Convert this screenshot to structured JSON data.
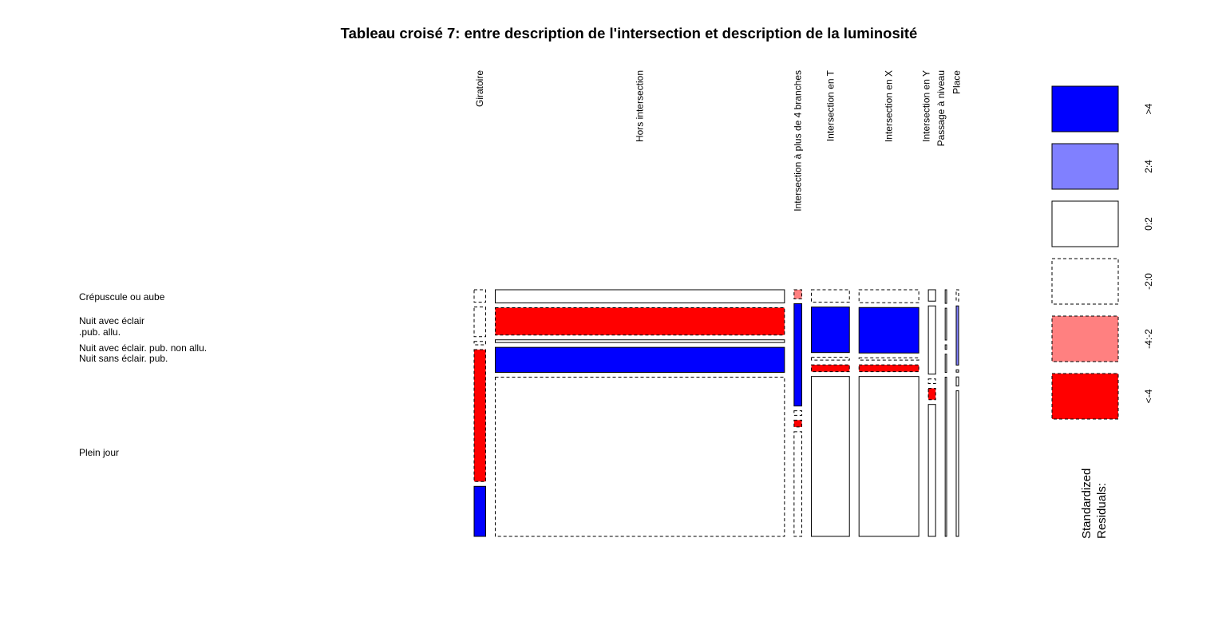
{
  "chart_data": {
    "type": "mosaic",
    "title": "Tableau croisé 7: entre description de l'intersection et description de la luminosité",
    "columns": [
      "Giratoire",
      "Hors intersection",
      "Intersection à plus de 4 branches",
      "Intersection en T",
      "Intersection en X",
      "Intersection en Y",
      "Passage à niveau",
      "Place"
    ],
    "rows": [
      "Crépuscule ou aube",
      "Nuit avec éclair .pub. allu.",
      "Nuit avec éclair. pub. non allu.",
      "Nuit sans éclair. pub.",
      "Plein jour"
    ],
    "row_label_lines": [
      [
        "Crépuscule ou aube"
      ],
      [
        "Nuit avec éclair",
        ".pub. allu."
      ],
      [
        "Nuit avec éclair. pub. non allu."
      ],
      [
        "Nuit sans éclair. pub."
      ],
      [
        "Plein jour"
      ]
    ],
    "column_widths": [
      0.024,
      0.6,
      0.016,
      0.079,
      0.124,
      0.015,
      0.003,
      0.005
    ],
    "cell_proportions": [
      [
        0.055,
        0.13,
        0.015,
        0.58,
        0.22
      ],
      [
        0.058,
        0.12,
        0.012,
        0.11,
        0.7
      ],
      [
        0.04,
        0.45,
        0.02,
        0.03,
        0.46
      ],
      [
        0.055,
        0.2,
        0.012,
        0.03,
        0.703
      ],
      [
        0.057,
        0.2,
        0.01,
        0.03,
        0.703
      ],
      [
        0.05,
        0.3,
        0.02,
        0.05,
        0.58
      ],
      [
        0.06,
        0.14,
        0.02,
        0.08,
        0.7
      ],
      [
        0.05,
        0.26,
        0.01,
        0.04,
        0.64
      ]
    ],
    "residual_classes": [
      [
        "-2:0",
        "-2:0",
        "-2:0",
        "<-4",
        ">4"
      ],
      [
        "0:2",
        "<-4",
        "0:2",
        ">4",
        "-2:0"
      ],
      [
        "-4:-2",
        ">4",
        "-2:0",
        "<-4",
        "-2:0"
      ],
      [
        "-2:0",
        ">4",
        "-2:0",
        "<-4",
        "0:2"
      ],
      [
        "-2:0",
        ">4",
        "-2:0",
        "<-4",
        "0:2"
      ],
      [
        "0:2",
        "0:2",
        "-2:0",
        "<-4",
        "0:2"
      ],
      [
        "0:2",
        "0:2",
        "0:2",
        "0:2",
        "0:2"
      ],
      [
        "-2:0",
        "2:4",
        "0:2",
        "0:2",
        "0:2"
      ]
    ],
    "legend": {
      "title_lines": [
        "Standardized",
        "Residuals:"
      ],
      "items": [
        {
          "label": ">4",
          "color": "#0000FF",
          "dashed": false
        },
        {
          "label": "2:4",
          "color": "#8080FF",
          "dashed": false
        },
        {
          "label": "0:2",
          "color": "#FFFFFF",
          "dashed": false
        },
        {
          "label": "-2:0",
          "color": "#FFFFFF",
          "dashed": true
        },
        {
          "label": "-4:-2",
          "color": "#FF8080",
          "dashed": true
        },
        {
          "label": "<-4",
          "color": "#FF0000",
          "dashed": true
        }
      ]
    }
  }
}
